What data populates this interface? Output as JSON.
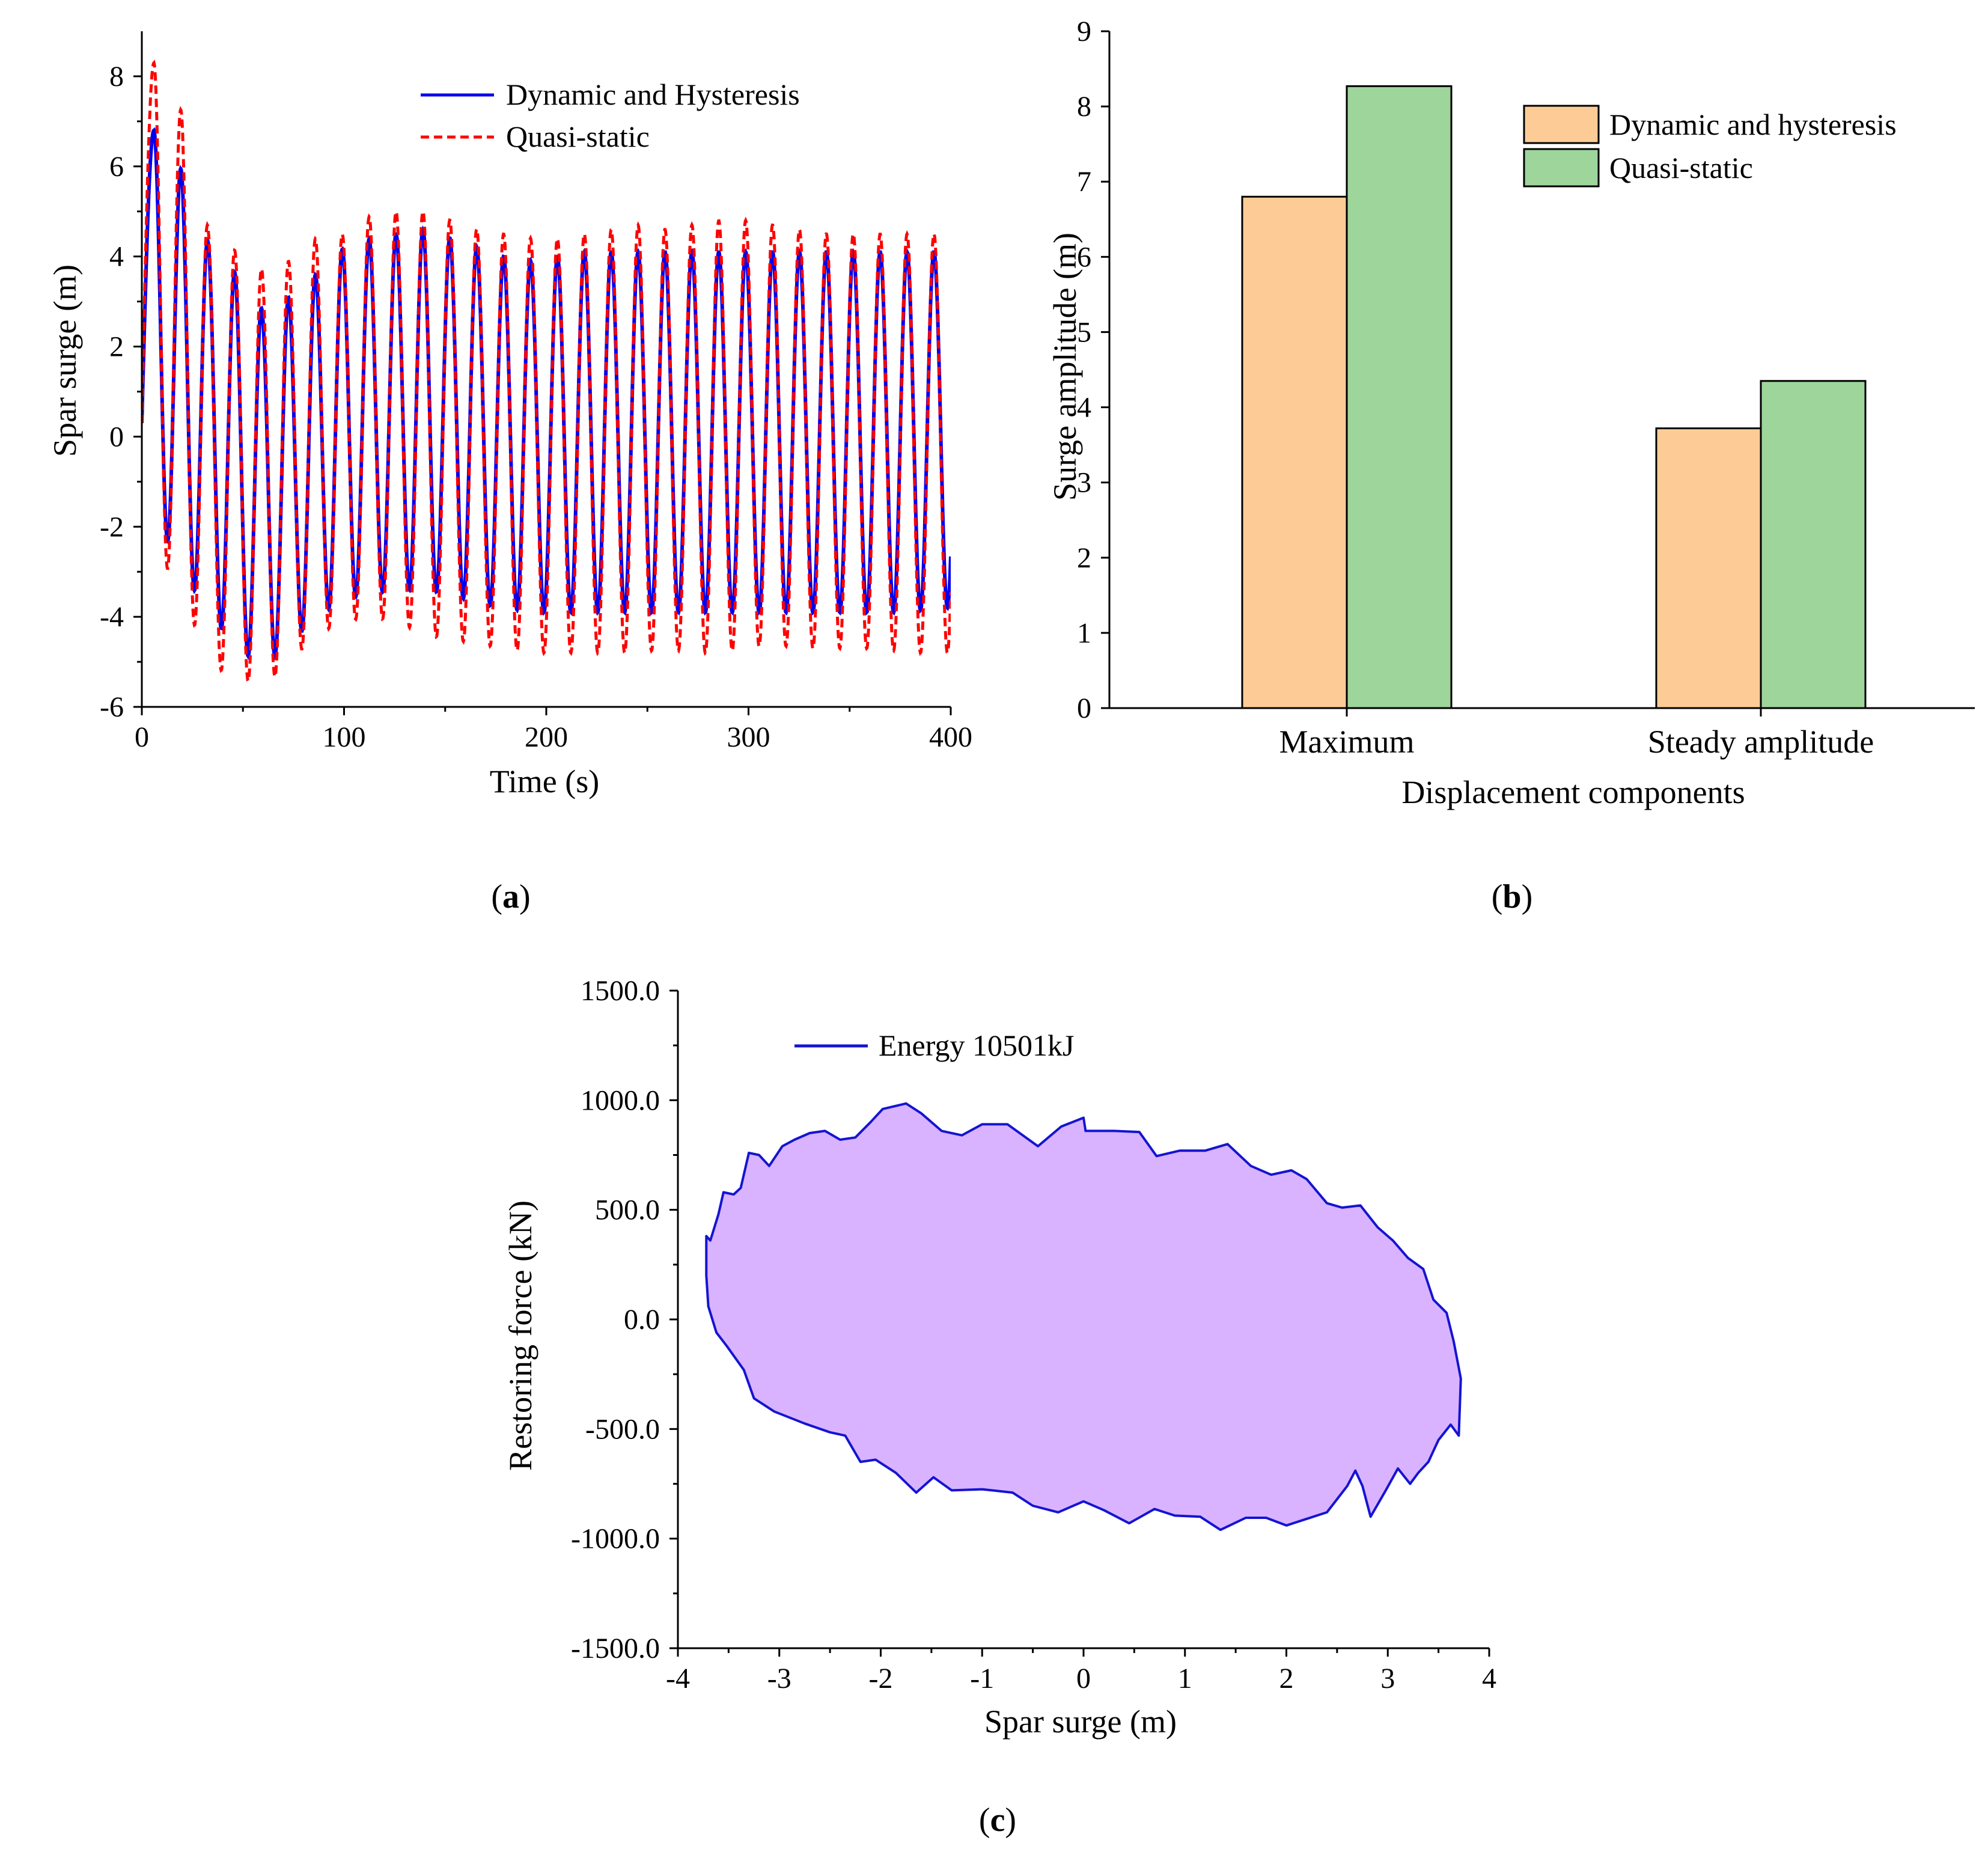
{
  "colors": {
    "dynamic": "#0000ee",
    "quasi": "#ff0000",
    "bar_dynamic": "#fdcc96",
    "bar_quasi": "#9dd59b",
    "loop_fill": "#d9b3ff",
    "loop_line": "#1414d2"
  },
  "panels": {
    "a": "a",
    "b": "b",
    "c": "c"
  },
  "chart_data": [
    {
      "id": "a",
      "type": "line",
      "title": "",
      "xlabel": "Time (s)",
      "ylabel": "Spar surge (m)",
      "xlim": [
        0,
        400
      ],
      "ylim": [
        -6,
        9
      ],
      "xticks": [
        0,
        100,
        200,
        300,
        400
      ],
      "yticks": [
        -6,
        -4,
        -2,
        0,
        2,
        4,
        6,
        8
      ],
      "grid": false,
      "legend_position": "top-right",
      "period_s": 13.3,
      "series": [
        {
          "name": "Dynamic and Hysteresis",
          "style": "solid",
          "peak_times": [
            6,
            20,
            33,
            47,
            60,
            73,
            86,
            100,
            113,
            126,
            140,
            153,
            166,
            179,
            193,
            206,
            219,
            233,
            246,
            259,
            272,
            286,
            299,
            312,
            325,
            339,
            352,
            365,
            379,
            392
          ],
          "peaks": [
            6.8,
            5.9,
            4.3,
            3.6,
            2.8,
            3.1,
            3.6,
            4.2,
            4.4,
            4.5,
            4.6,
            4.4,
            4.2,
            4.0,
            3.9,
            4.0,
            4.1,
            4.1,
            4.1,
            4.1,
            4.1,
            4.1,
            4.1,
            4.1,
            4.1,
            4.1,
            4.1,
            4.1,
            4.1,
            4.1
          ],
          "troughs": [
            -1.7,
            -3.0,
            -3.9,
            -4.7,
            -5.1,
            -4.6,
            -4.0,
            -3.6,
            -3.5,
            -3.4,
            -3.4,
            -3.5,
            -3.7,
            -3.8,
            -3.9,
            -3.9,
            -3.9,
            -3.9,
            -3.9,
            -3.9,
            -3.9,
            -3.9,
            -3.9,
            -3.9,
            -3.9,
            -3.9,
            -3.9,
            -3.9,
            -3.9,
            -3.8
          ]
        },
        {
          "name": "Quasi-static",
          "style": "dashed",
          "peak_times": [
            6,
            20,
            33,
            47,
            60,
            73,
            86,
            100,
            113,
            126,
            140,
            153,
            166,
            179,
            193,
            206,
            219,
            233,
            246,
            259,
            272,
            286,
            299,
            312,
            325,
            339,
            352,
            365,
            379,
            392
          ],
          "peaks": [
            8.3,
            7.2,
            4.6,
            4.1,
            3.7,
            3.9,
            4.4,
            4.5,
            4.9,
            5.0,
            5.0,
            4.8,
            4.6,
            4.5,
            4.4,
            4.4,
            4.5,
            4.6,
            4.7,
            4.6,
            4.7,
            4.8,
            4.8,
            4.7,
            4.6,
            4.5,
            4.5,
            4.5,
            4.5,
            4.5
          ],
          "troughs": [
            -2.5,
            -3.4,
            -5.1,
            -5.3,
            -5.6,
            -5.0,
            -4.4,
            -4.1,
            -4.0,
            -4.1,
            -4.4,
            -4.5,
            -4.6,
            -4.7,
            -4.8,
            -4.8,
            -4.8,
            -4.8,
            -4.8,
            -4.7,
            -4.8,
            -4.8,
            -4.7,
            -4.6,
            -4.7,
            -4.7,
            -4.7,
            -4.7,
            -4.8,
            -4.8
          ]
        }
      ]
    },
    {
      "id": "b",
      "type": "bar",
      "title": "",
      "xlabel": "Displacement components",
      "ylabel": "Surge amplitude (m)",
      "ylim": [
        0,
        9
      ],
      "yticks": [
        0,
        1,
        2,
        3,
        4,
        5,
        6,
        7,
        8,
        9
      ],
      "grid": false,
      "legend_position": "top-right",
      "categories": [
        "Maximum",
        "Steady amplitude"
      ],
      "series": [
        {
          "name": "Dynamic and hysteresis",
          "values": [
            6.8,
            3.72
          ]
        },
        {
          "name": "Quasi-static",
          "values": [
            8.27,
            4.35
          ]
        }
      ]
    },
    {
      "id": "c",
      "type": "area",
      "title": "",
      "xlabel": "Spar surge (m)",
      "ylabel": "Restoring force (kN)",
      "xlim": [
        -4,
        4
      ],
      "ylim": [
        -1500,
        1500
      ],
      "xticks": [
        "-4",
        "-3",
        "-2",
        "-1",
        "0",
        "1",
        "2",
        "3",
        "4"
      ],
      "yticks": [
        "1500.0",
        "1000.0",
        "500.0",
        "0.0",
        "-500.0",
        "-1000.0",
        "-1500.0"
      ],
      "grid": false,
      "legend_position": "top-left",
      "series": [
        {
          "name": "Energy 10501kJ",
          "points": [
            [
              -3.72,
              380
            ],
            [
              -3.68,
              360
            ],
            [
              -3.6,
              480
            ],
            [
              -3.55,
              580
            ],
            [
              -3.45,
              570
            ],
            [
              -3.38,
              600
            ],
            [
              -3.3,
              760
            ],
            [
              -3.2,
              750
            ],
            [
              -3.1,
              700
            ],
            [
              -2.97,
              790
            ],
            [
              -2.85,
              820
            ],
            [
              -2.7,
              850
            ],
            [
              -2.55,
              860
            ],
            [
              -2.4,
              820
            ],
            [
              -2.25,
              830
            ],
            [
              -2.1,
              900
            ],
            [
              -1.98,
              960
            ],
            [
              -1.75,
              985
            ],
            [
              -1.6,
              940
            ],
            [
              -1.4,
              860
            ],
            [
              -1.2,
              840
            ],
            [
              -1.0,
              890
            ],
            [
              -0.75,
              890
            ],
            [
              -0.45,
              790
            ],
            [
              -0.22,
              880
            ],
            [
              0.0,
              920
            ],
            [
              0.02,
              860
            ],
            [
              0.3,
              860
            ],
            [
              0.55,
              855
            ],
            [
              0.72,
              745
            ],
            [
              0.95,
              770
            ],
            [
              1.2,
              770
            ],
            [
              1.42,
              800
            ],
            [
              1.65,
              700
            ],
            [
              1.85,
              660
            ],
            [
              2.05,
              680
            ],
            [
              2.2,
              640
            ],
            [
              2.4,
              530
            ],
            [
              2.55,
              510
            ],
            [
              2.73,
              520
            ],
            [
              2.9,
              420
            ],
            [
              3.05,
              360
            ],
            [
              3.2,
              280
            ],
            [
              3.35,
              230
            ],
            [
              3.45,
              90
            ],
            [
              3.58,
              30
            ],
            [
              3.65,
              -100
            ],
            [
              3.72,
              -270
            ],
            [
              3.7,
              -530
            ],
            [
              3.62,
              -480
            ],
            [
              3.5,
              -550
            ],
            [
              3.4,
              -650
            ],
            [
              3.3,
              -700
            ],
            [
              3.22,
              -750
            ],
            [
              3.1,
              -680
            ],
            [
              2.98,
              -780
            ],
            [
              2.83,
              -900
            ],
            [
              2.75,
              -760
            ],
            [
              2.68,
              -690
            ],
            [
              2.6,
              -760
            ],
            [
              2.4,
              -880
            ],
            [
              2.2,
              -910
            ],
            [
              2.0,
              -940
            ],
            [
              1.8,
              -905
            ],
            [
              1.6,
              -905
            ],
            [
              1.35,
              -960
            ],
            [
              1.15,
              -900
            ],
            [
              0.9,
              -895
            ],
            [
              0.7,
              -865
            ],
            [
              0.45,
              -930
            ],
            [
              0.2,
              -870
            ],
            [
              0.0,
              -830
            ],
            [
              -0.25,
              -880
            ],
            [
              -0.5,
              -850
            ],
            [
              -0.7,
              -790
            ],
            [
              -1.0,
              -775
            ],
            [
              -1.3,
              -780
            ],
            [
              -1.48,
              -720
            ],
            [
              -1.65,
              -790
            ],
            [
              -1.85,
              -700
            ],
            [
              -2.05,
              -640
            ],
            [
              -2.2,
              -650
            ],
            [
              -2.35,
              -530
            ],
            [
              -2.5,
              -515
            ],
            [
              -2.75,
              -475
            ],
            [
              -3.05,
              -420
            ],
            [
              -3.25,
              -360
            ],
            [
              -3.35,
              -230
            ],
            [
              -3.52,
              -120
            ],
            [
              -3.62,
              -60
            ],
            [
              -3.7,
              60
            ],
            [
              -3.72,
              200
            ],
            [
              -3.72,
              380
            ]
          ]
        }
      ]
    }
  ]
}
